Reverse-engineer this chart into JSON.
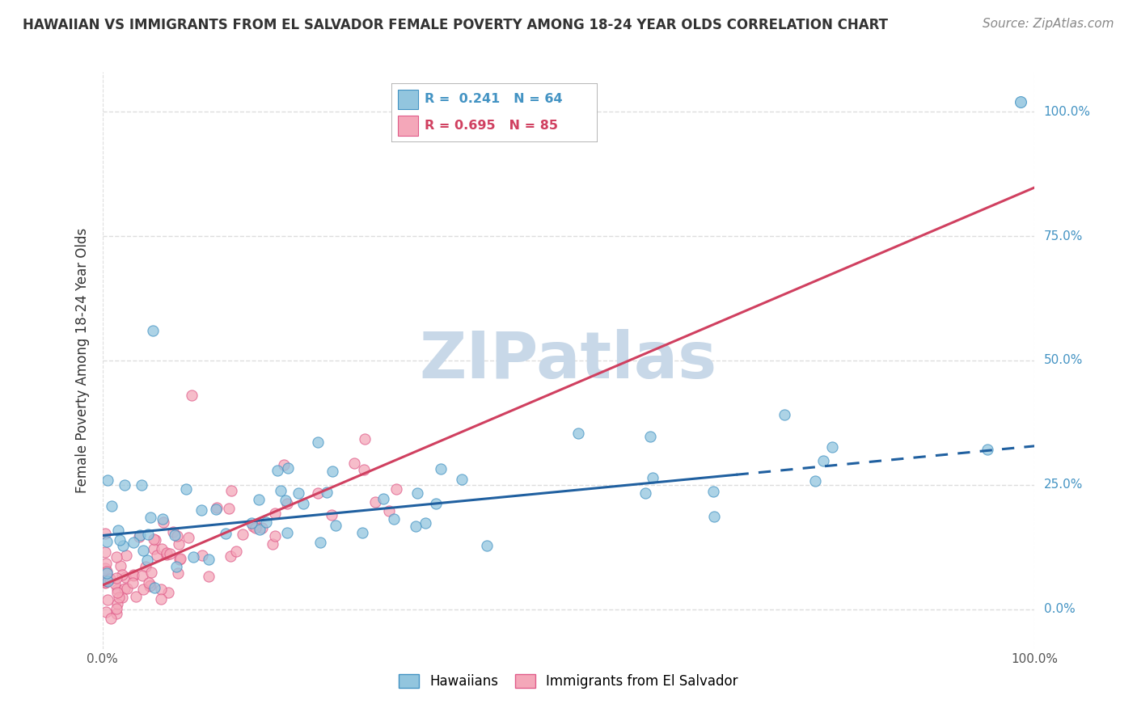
{
  "title": "HAWAIIAN VS IMMIGRANTS FROM EL SALVADOR FEMALE POVERTY AMONG 18-24 YEAR OLDS CORRELATION CHART",
  "source": "Source: ZipAtlas.com",
  "ylabel": "Female Poverty Among 18-24 Year Olds",
  "xlim": [
    0.0,
    1.0
  ],
  "ylim": [
    -0.08,
    1.08
  ],
  "yticks": [
    0.0,
    0.25,
    0.5,
    0.75,
    1.0
  ],
  "right_tick_labels": {
    "0.0": "0.0%",
    "0.25": "25.0%",
    "0.5": "50.0%",
    "0.75": "75.0%",
    "1.0": "100.0%"
  },
  "xticks": [
    0.0,
    1.0
  ],
  "xtick_labels": [
    "0.0%",
    "100.0%"
  ],
  "series": [
    {
      "name": "Hawaiians",
      "color": "#92C5DE",
      "edge_color": "#4393C3",
      "R": 0.241,
      "N": 64,
      "line_slope": 0.18,
      "line_intercept": 0.148,
      "line_solid_end": 0.68,
      "line_dashed_end": 1.0
    },
    {
      "name": "Immigrants from El Salvador",
      "color": "#F4A7B9",
      "edge_color": "#E05C8A",
      "R": 0.695,
      "N": 85,
      "line_slope": 0.8,
      "line_intercept": 0.048,
      "line_solid_end": 1.0
    }
  ],
  "watermark": "ZIPatlas",
  "watermark_color": "#C8D8E8",
  "background_color": "#FFFFFF",
  "grid_color": "#DDDDDD",
  "title_fontsize": 12,
  "axis_label_fontsize": 12,
  "source_fontsize": 11,
  "blue_line_color": "#2060A0",
  "pink_line_color": "#D04060"
}
